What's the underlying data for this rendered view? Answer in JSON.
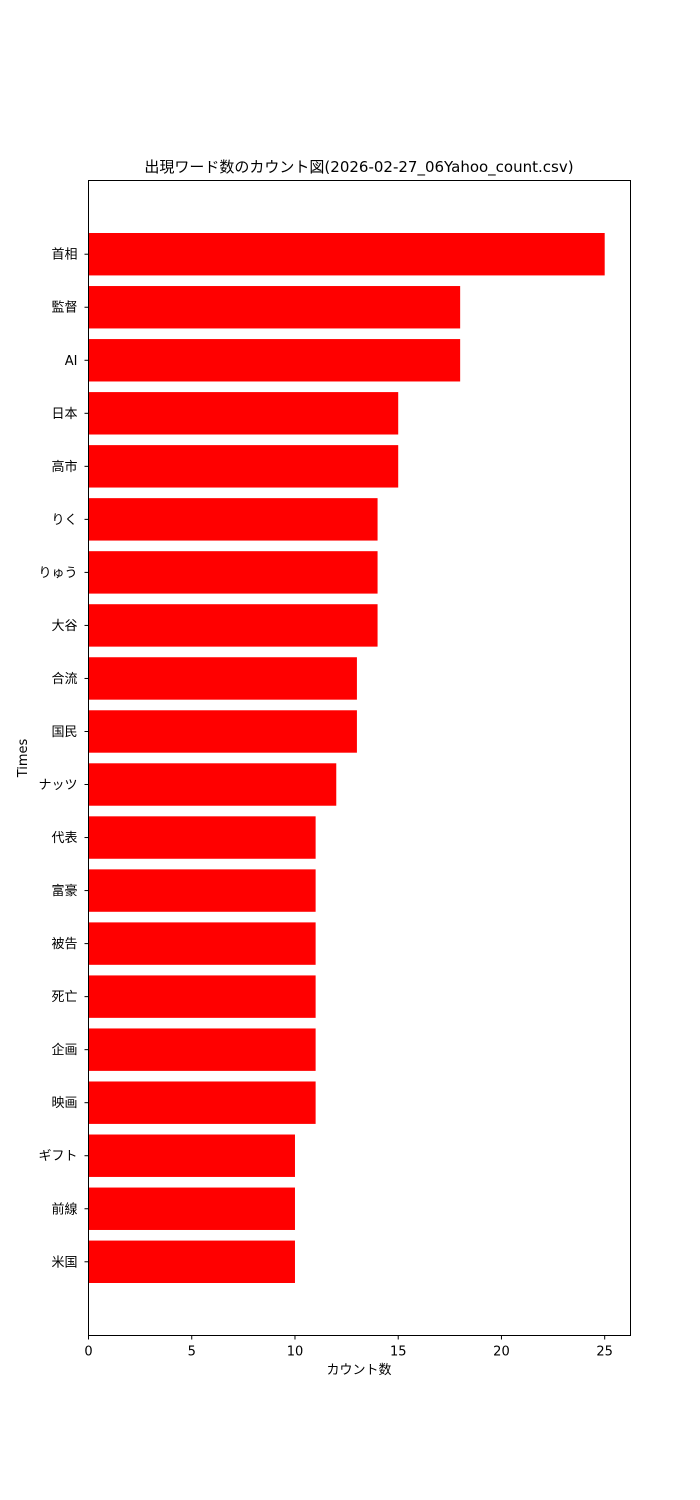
{
  "chart_data": {
    "type": "bar",
    "orientation": "horizontal",
    "title": "出現ワード数のカウント図(2026-02-27_06Yahoo_count.csv)",
    "xlabel": "カウント数",
    "ylabel": "Times",
    "categories": [
      "首相",
      "監督",
      "AI",
      "日本",
      "高市",
      "りく",
      "りゅう",
      "大谷",
      "合流",
      "国民",
      "ナッツ",
      "代表",
      "富豪",
      "被告",
      "死亡",
      "企画",
      "映画",
      "ギフト",
      "前線",
      "米国"
    ],
    "values": [
      25,
      18,
      18,
      15,
      15,
      14,
      14,
      14,
      13,
      13,
      12,
      11,
      11,
      11,
      11,
      11,
      11,
      10,
      10,
      10
    ],
    "xlim": [
      0,
      26.25
    ],
    "xticks": [
      "0",
      "5",
      "10",
      "15",
      "20",
      "25"
    ],
    "grid": false,
    "bar_color": "#ff0000"
  }
}
